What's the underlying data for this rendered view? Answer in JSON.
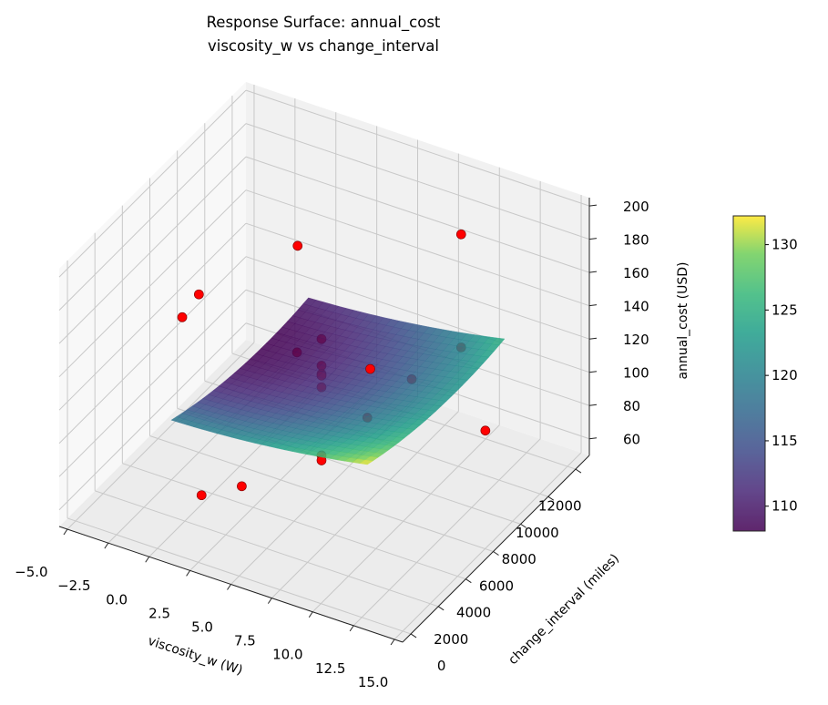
{
  "chart_data": {
    "type": "surface3d",
    "title_lines": [
      "Response Surface: annual_cost",
      "viscosity_w vs change_interval"
    ],
    "xlabel": "viscosity_w (W)",
    "ylabel": "change_interval (miles)",
    "zlabel": "annual_cost (USD)",
    "xlim": [
      -5.5,
      15.5
    ],
    "ylim": [
      -600,
      13000
    ],
    "zlim": [
      50,
      205
    ],
    "x_ticks": [
      -5,
      -2.5,
      0,
      2.5,
      5,
      7.5,
      10,
      12.5,
      15
    ],
    "x_tick_labels": [
      "−5.0",
      "−2.5",
      "0.0",
      "2.5",
      "5.0",
      "7.5",
      "10.0",
      "12.5",
      "15.0"
    ],
    "y_ticks": [
      0,
      2000,
      4000,
      6000,
      8000,
      10000,
      12000
    ],
    "y_tick_labels": [
      "0",
      "2000",
      "4000",
      "6000",
      "8000",
      "10000",
      "12000"
    ],
    "z_ticks": [
      60,
      80,
      100,
      120,
      140,
      160,
      180,
      200
    ],
    "z_tick_labels": [
      "60",
      "80",
      "100",
      "120",
      "140",
      "160",
      "180",
      "200"
    ],
    "surface": {
      "x_range": [
        0,
        12
      ],
      "y_range": [
        1000,
        11000
      ],
      "model": "z = 119 + 3u + 10u^2 - 31.5v + 22.5v^2 + 2uv, u=x/12, v=(y-1000)/10000",
      "z_range": [
        108,
        132
      ],
      "colormap": "viridis"
    },
    "points": [
      {
        "x": -1.5,
        "y": 12000,
        "z": 128
      },
      {
        "x": 8.5,
        "y": 12000,
        "z": 168
      },
      {
        "x": -2.5,
        "y": 6000,
        "z": 145
      },
      {
        "x": -1,
        "y": 3000,
        "z": 161
      },
      {
        "x": 3.5,
        "y": 6000,
        "z": 130
      },
      {
        "x": 5,
        "y": 6000,
        "z": 143
      },
      {
        "x": 5,
        "y": 6000,
        "z": 127
      },
      {
        "x": 5,
        "y": 6000,
        "z": 122
      },
      {
        "x": 5,
        "y": 6000,
        "z": 121
      },
      {
        "x": 5,
        "y": 6000,
        "z": 114
      },
      {
        "x": 10.5,
        "y": 3000,
        "z": 168
      },
      {
        "x": 8,
        "y": 9000,
        "z": 104
      },
      {
        "x": 8.5,
        "y": 12000,
        "z": 100
      },
      {
        "x": 7.8,
        "y": 6000,
        "z": 105
      },
      {
        "x": 12.5,
        "y": 9000,
        "z": 88
      },
      {
        "x": 5,
        "y": 6000,
        "z": 73
      },
      {
        "x": 5,
        "y": 6000,
        "z": 70
      },
      {
        "x": 2.7,
        "y": 0,
        "z": 91
      },
      {
        "x": 3.9,
        "y": 1500,
        "z": 88
      }
    ],
    "point_color": "#ff0000",
    "colorbar": {
      "range": [
        108.1,
        132.2
      ],
      "ticks": [
        110,
        115,
        120,
        125,
        130
      ],
      "tick_labels": [
        "110",
        "115",
        "120",
        "125",
        "130"
      ]
    }
  }
}
